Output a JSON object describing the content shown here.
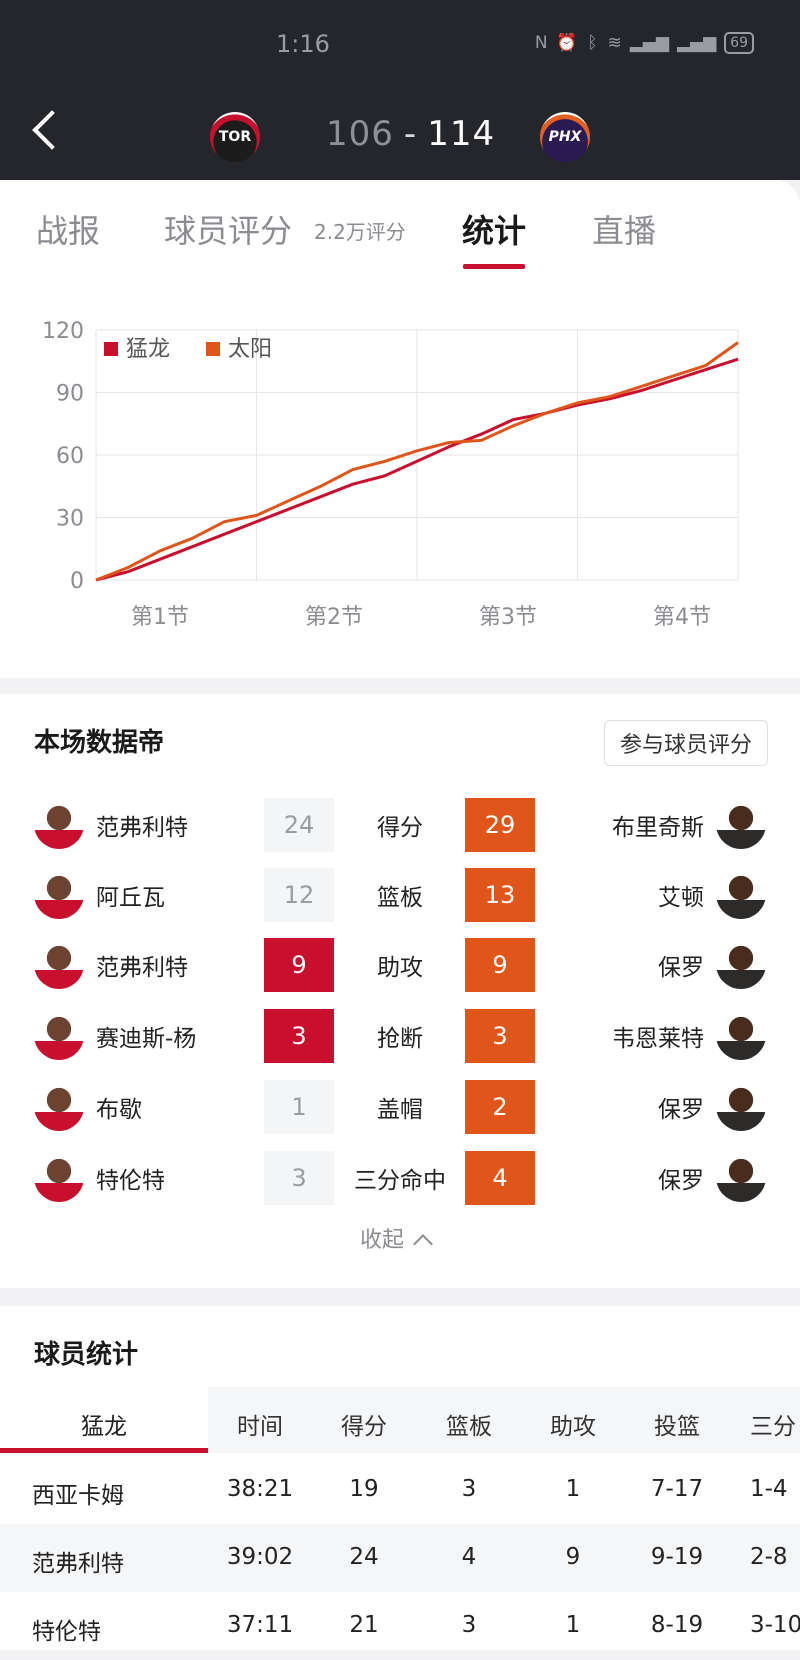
{
  "status": {
    "time": "1:16",
    "battery": "69"
  },
  "header": {
    "home_logo": "TOR",
    "away_logo": "PHX",
    "home_score": "106",
    "separator": "-",
    "away_score": "114"
  },
  "tabs": [
    {
      "label": "战报"
    },
    {
      "label": "球员评分",
      "sub": "2.2万评分"
    },
    {
      "label": "统计",
      "active": true
    },
    {
      "label": "直播"
    }
  ],
  "chart_data": {
    "type": "line",
    "series": [
      {
        "name": "猛龙",
        "color": "#c8102e",
        "x": [
          0,
          0.2,
          0.4,
          0.6,
          0.8,
          1,
          1.2,
          1.4,
          1.6,
          1.8,
          2,
          2.2,
          2.4,
          2.6,
          2.8,
          3,
          3.2,
          3.4,
          3.6,
          3.8,
          4
        ],
        "values": [
          0,
          4,
          10,
          16,
          22,
          28,
          34,
          40,
          46,
          50,
          57,
          64,
          70,
          77,
          80,
          84,
          87,
          91,
          96,
          101,
          106
        ]
      },
      {
        "name": "太阳",
        "color": "#e0561a",
        "x": [
          0,
          0.2,
          0.4,
          0.6,
          0.8,
          1,
          1.2,
          1.4,
          1.6,
          1.8,
          2,
          2.2,
          2.4,
          2.6,
          2.8,
          3,
          3.2,
          3.4,
          3.6,
          3.8,
          4
        ],
        "values": [
          0,
          6,
          14,
          20,
          28,
          31,
          38,
          45,
          53,
          57,
          62,
          66,
          67,
          74,
          80,
          85,
          88,
          93,
          98,
          103,
          114
        ]
      }
    ],
    "categories": [
      "第1节",
      "第2节",
      "第3节",
      "第4节"
    ],
    "ylim": [
      0,
      120
    ],
    "yticks": [
      "0",
      "30",
      "60",
      "90",
      "120"
    ],
    "legend": "top-left",
    "grid": true
  },
  "leaders": {
    "title": "本场数据帝",
    "rate_button": "参与球员评分",
    "rows": [
      {
        "left_name": "范弗利特",
        "left_value": "24",
        "left_win": false,
        "stat": "得分",
        "right_value": "29",
        "right_name": "布里奇斯"
      },
      {
        "left_name": "阿丘瓦",
        "left_value": "12",
        "left_win": false,
        "stat": "篮板",
        "right_value": "13",
        "right_name": "艾顿"
      },
      {
        "left_name": "范弗利特",
        "left_value": "9",
        "left_win": true,
        "stat": "助攻",
        "right_value": "9",
        "right_name": "保罗"
      },
      {
        "left_name": "赛迪斯-杨",
        "left_value": "3",
        "left_win": true,
        "stat": "抢断",
        "right_value": "3",
        "right_name": "韦恩莱特"
      },
      {
        "left_name": "布歇",
        "left_value": "1",
        "left_win": false,
        "stat": "盖帽",
        "right_value": "2",
        "right_name": "保罗"
      },
      {
        "left_name": "特伦特",
        "left_value": "3",
        "left_win": false,
        "stat": "三分命中",
        "right_value": "4",
        "right_name": "保罗"
      }
    ],
    "collapse_label": "收起"
  },
  "player_stats": {
    "title": "球员统计",
    "team": "猛龙",
    "columns": [
      "时间",
      "得分",
      "篮板",
      "助攻",
      "投篮",
      "三分"
    ],
    "rows": [
      {
        "name": "西亚卡姆",
        "cells": [
          "38:21",
          "19",
          "3",
          "1",
          "7-17",
          "1-4"
        ]
      },
      {
        "name": "范弗利特",
        "cells": [
          "39:02",
          "24",
          "4",
          "9",
          "9-19",
          "2-8"
        ]
      },
      {
        "name": "特伦特",
        "cells": [
          "37:11",
          "21",
          "3",
          "1",
          "8-19",
          "3-10"
        ]
      }
    ]
  }
}
